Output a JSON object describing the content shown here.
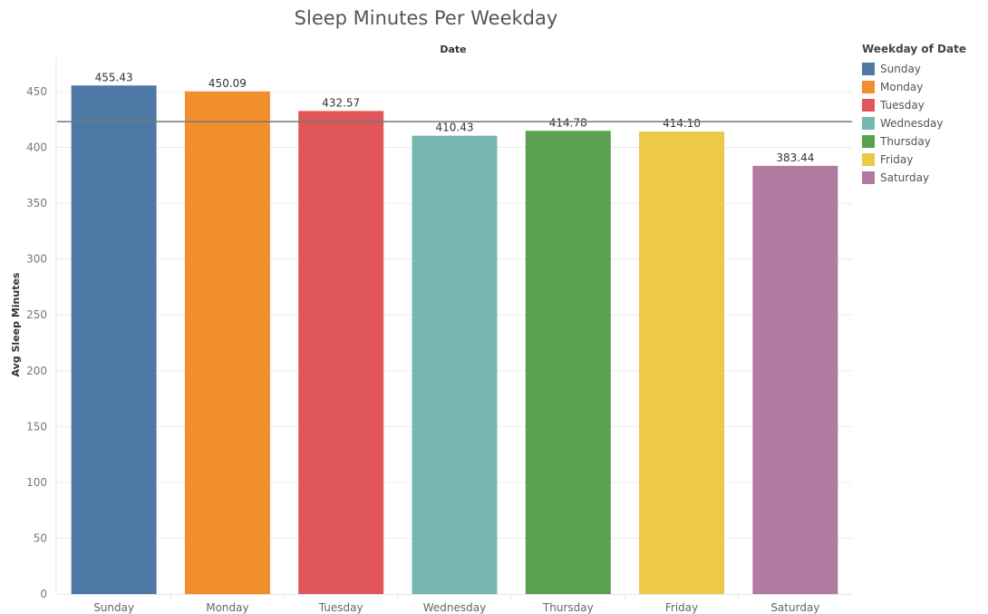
{
  "chart_data": {
    "type": "bar",
    "title": "Sleep Minutes Per Weekday",
    "xlabel": "Date",
    "ylabel": "Avg Sleep Minutes",
    "categories": [
      "Sunday",
      "Monday",
      "Tuesday",
      "Wednesday",
      "Thursday",
      "Friday",
      "Saturday"
    ],
    "values": [
      455.43,
      450.09,
      432.57,
      410.43,
      414.78,
      414.1,
      383.44
    ],
    "value_labels": [
      "455.43",
      "450.09",
      "432.57",
      "410.43",
      "414.78",
      "414.10",
      "383.44"
    ],
    "colors": [
      "#4e79a7",
      "#f28e2b",
      "#e15759",
      "#76b7b2",
      "#59a14f",
      "#edc948",
      "#b07aa1"
    ],
    "ylim": [
      0,
      480
    ],
    "yticks": [
      0,
      50,
      100,
      150,
      200,
      250,
      300,
      350,
      400,
      450
    ],
    "reference_line": 423.06,
    "reference_line_color": "#777777",
    "grid": true,
    "legend": {
      "title": "Weekday of Date",
      "position": "right",
      "items": [
        "Sunday",
        "Monday",
        "Tuesday",
        "Wednesday",
        "Thursday",
        "Friday",
        "Saturday"
      ]
    }
  }
}
